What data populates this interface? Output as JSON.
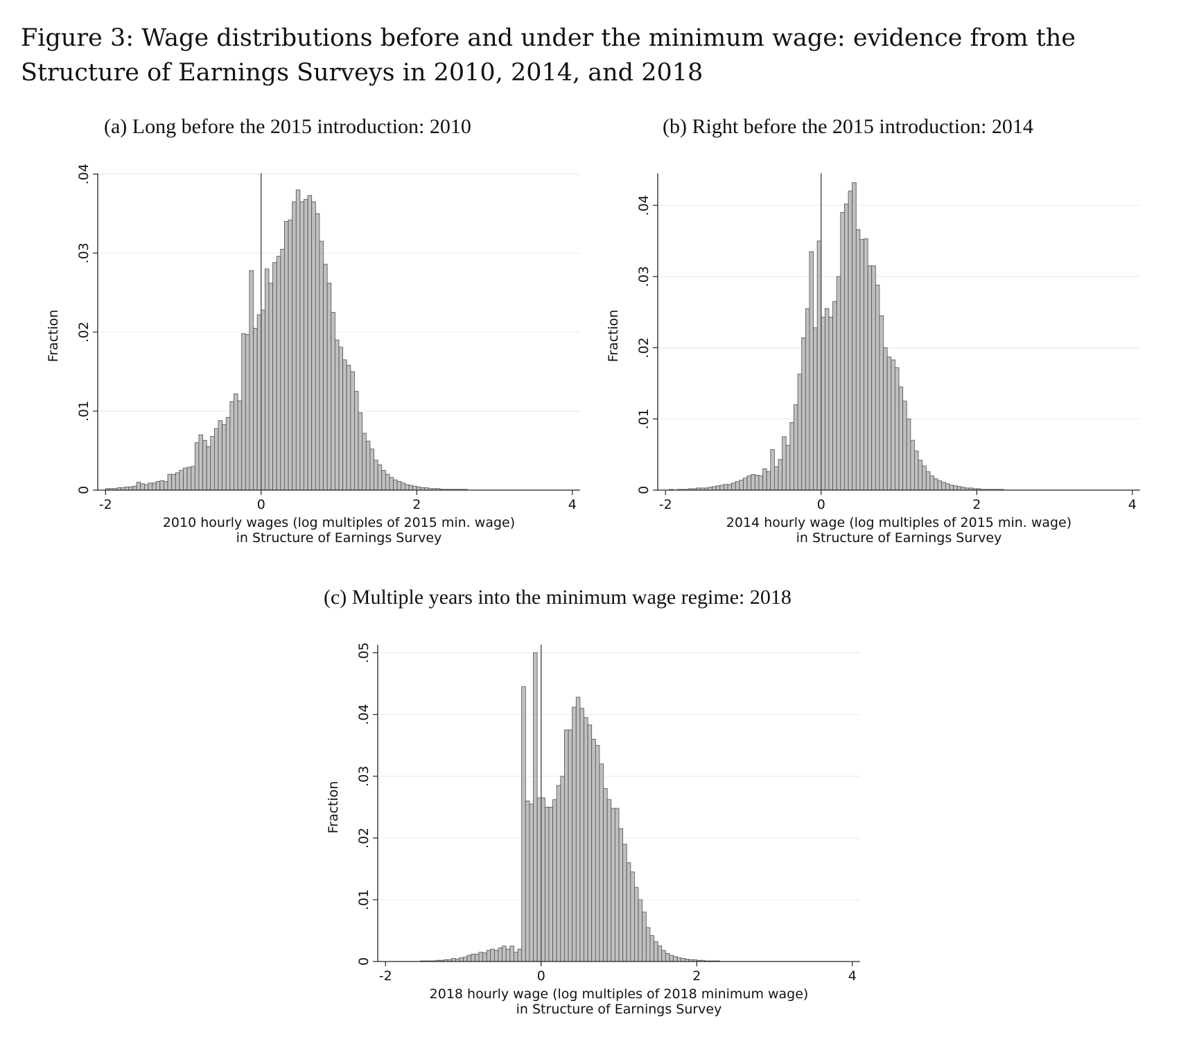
{
  "figure_title": "Figure 3: Wage distributions before and under the minimum wage: evidence from the Structure of Earnings Surveys in 2010, 2014, and 2018",
  "chart_data": [
    {
      "id": "a",
      "type": "bar",
      "title": "(a) Long before the 2015 introduction: 2010",
      "ylabel": "Fraction",
      "xlabel_lines": [
        "2010 hourly wages (log multiples of 2015 min. wage)",
        "in Structure of Earnings Survey"
      ],
      "xlim": [
        -2.1,
        4.1
      ],
      "ylim": [
        0,
        0.0401
      ],
      "xticks": [
        -2,
        0,
        2,
        4
      ],
      "xtick_labels": [
        "-2",
        "0",
        "2",
        "4"
      ],
      "yticks": [
        0,
        0.01,
        0.02,
        0.03,
        0.04
      ],
      "ytick_labels": [
        "0",
        ".01",
        ".02",
        ".03",
        ".04"
      ],
      "grid": true,
      "reference_line_x": 0,
      "bin_start": -2.0,
      "bin_width": 0.05,
      "values": [
        0.0002,
        0.0002,
        0.0002,
        0.0003,
        0.0003,
        0.0004,
        0.0004,
        0.0005,
        0.001,
        0.0008,
        0.0007,
        0.0009,
        0.0009,
        0.0011,
        0.0012,
        0.0011,
        0.002,
        0.002,
        0.0022,
        0.0025,
        0.0028,
        0.0029,
        0.003,
        0.006,
        0.007,
        0.0063,
        0.0055,
        0.0068,
        0.0078,
        0.0088,
        0.0083,
        0.0092,
        0.0112,
        0.0122,
        0.0113,
        0.0198,
        0.0197,
        0.0278,
        0.0205,
        0.0222,
        0.0228,
        0.028,
        0.0262,
        0.0288,
        0.0296,
        0.0305,
        0.034,
        0.0342,
        0.0365,
        0.038,
        0.0365,
        0.0368,
        0.0373,
        0.0365,
        0.035,
        0.0315,
        0.0286,
        0.0262,
        0.0225,
        0.019,
        0.0181,
        0.0165,
        0.0158,
        0.015,
        0.0125,
        0.0098,
        0.0072,
        0.0062,
        0.0052,
        0.0038,
        0.0032,
        0.0025,
        0.002,
        0.0016,
        0.0013,
        0.0011,
        0.0009,
        0.0007,
        0.0006,
        0.0005,
        0.0004,
        0.0003,
        0.0003,
        0.0002,
        0.0002,
        0.0002,
        0.0001,
        0.0001,
        0.0001,
        0.0001,
        0.0001,
        0.0001,
        0.0001,
        0.0,
        0.0,
        0.0,
        0.0,
        0.0,
        0.0,
        0.0,
        0.0,
        0.0,
        0.0,
        0.0,
        0.0,
        0.0,
        0.0,
        0.0,
        0.0,
        0.0,
        0.0,
        0.0,
        0.0,
        0.0,
        0.0,
        0.0,
        0.0,
        0.0,
        0.0,
        0.0
      ]
    },
    {
      "id": "b",
      "type": "bar",
      "title": "(b) Right before the 2015 introduction: 2014",
      "ylabel": "Fraction",
      "xlabel_lines": [
        "2014 hourly wage (log multiples of 2015 min. wage)",
        "in Structure of Earnings Survey"
      ],
      "xlim": [
        -2.1,
        4.1
      ],
      "ylim": [
        0,
        0.0445
      ],
      "xticks": [
        -2,
        0,
        2,
        4
      ],
      "xtick_labels": [
        "-2",
        "0",
        "2",
        "4"
      ],
      "yticks": [
        0,
        0.01,
        0.02,
        0.03,
        0.04
      ],
      "ytick_labels": [
        "0",
        ".01",
        ".02",
        ".03",
        ".04"
      ],
      "grid": true,
      "reference_line_x": 0,
      "bin_start": -2.0,
      "bin_width": 0.05,
      "values": [
        0.0,
        0.0001,
        0.0,
        0.0001,
        0.0001,
        0.0001,
        0.0002,
        0.0002,
        0.0003,
        0.0003,
        0.0003,
        0.0004,
        0.0005,
        0.0006,
        0.0007,
        0.0008,
        0.0008,
        0.001,
        0.0012,
        0.0014,
        0.0017,
        0.002,
        0.0022,
        0.0021,
        0.002,
        0.003,
        0.0026,
        0.0057,
        0.0033,
        0.0043,
        0.0075,
        0.0063,
        0.0095,
        0.012,
        0.0163,
        0.0214,
        0.0255,
        0.0335,
        0.0228,
        0.035,
        0.0243,
        0.0255,
        0.0243,
        0.0265,
        0.03,
        0.039,
        0.0402,
        0.042,
        0.0432,
        0.0366,
        0.0352,
        0.0353,
        0.0315,
        0.0315,
        0.0288,
        0.0245,
        0.02,
        0.0187,
        0.0183,
        0.0172,
        0.0145,
        0.0125,
        0.01,
        0.007,
        0.0055,
        0.0042,
        0.0034,
        0.0026,
        0.002,
        0.0016,
        0.0013,
        0.0011,
        0.0009,
        0.0007,
        0.0006,
        0.0005,
        0.0004,
        0.0003,
        0.0003,
        0.0002,
        0.0002,
        0.0001,
        0.0001,
        0.0001,
        0.0001,
        0.0001,
        0.0001,
        0.0,
        0.0,
        0.0,
        0.0,
        0.0,
        0.0,
        0.0,
        0.0,
        0.0,
        0.0,
        0.0,
        0.0,
        0.0,
        0.0,
        0.0,
        0.0,
        0.0,
        0.0,
        0.0,
        0.0,
        0.0,
        0.0,
        0.0,
        0.0,
        0.0,
        0.0,
        0.0,
        0.0,
        0.0,
        0.0,
        0.0,
        0.0,
        0.0
      ]
    },
    {
      "id": "c",
      "type": "bar",
      "title": "(c) Multiple years into the minimum wage regime: 2018",
      "ylabel": "Fraction",
      "xlabel_lines": [
        "2018 hourly wage (log multiples of 2018 minimum wage)",
        "in Structure of Earnings Survey"
      ],
      "xlim": [
        -2.1,
        4.1
      ],
      "ylim": [
        0,
        0.0513
      ],
      "xticks": [
        -2,
        0,
        2,
        4
      ],
      "xtick_labels": [
        "-2",
        "0",
        "2",
        "4"
      ],
      "yticks": [
        0,
        0.01,
        0.02,
        0.03,
        0.04,
        0.05
      ],
      "ytick_labels": [
        "0",
        ".01",
        ".02",
        ".03",
        ".04",
        ".05"
      ],
      "grid": true,
      "reference_line_x": 0,
      "bin_start": -2.0,
      "bin_width": 0.05,
      "values": [
        0.0,
        0.0,
        0.0,
        0.0,
        0.0,
        0.0,
        0.0,
        0.0,
        0.0,
        0.0001,
        0.0001,
        0.0001,
        0.0001,
        0.0002,
        0.0002,
        0.0003,
        0.0003,
        0.0005,
        0.0004,
        0.0006,
        0.0007,
        0.001,
        0.0012,
        0.0012,
        0.0015,
        0.0014,
        0.0018,
        0.002,
        0.0018,
        0.0022,
        0.0025,
        0.002,
        0.0025,
        0.0015,
        0.002,
        0.0445,
        0.026,
        0.0255,
        0.05,
        0.0265,
        0.0265,
        0.025,
        0.025,
        0.0262,
        0.0285,
        0.03,
        0.0375,
        0.0375,
        0.0412,
        0.0428,
        0.041,
        0.0395,
        0.0383,
        0.036,
        0.035,
        0.032,
        0.028,
        0.0262,
        0.0248,
        0.0248,
        0.0215,
        0.019,
        0.016,
        0.0145,
        0.012,
        0.01,
        0.008,
        0.0055,
        0.0042,
        0.0032,
        0.0025,
        0.0018,
        0.0013,
        0.001,
        0.0008,
        0.0006,
        0.0005,
        0.0004,
        0.0003,
        0.0003,
        0.0002,
        0.0002,
        0.0001,
        0.0001,
        0.0001,
        0.0001,
        0.0,
        0.0,
        0.0,
        0.0,
        0.0,
        0.0,
        0.0,
        0.0,
        0.0,
        0.0,
        0.0,
        0.0,
        0.0,
        0.0,
        0.0,
        0.0,
        0.0,
        0.0,
        0.0,
        0.0,
        0.0,
        0.0,
        0.0,
        0.0,
        0.0,
        0.0,
        0.0,
        0.0,
        0.0,
        0.0,
        0.0,
        0.0,
        0.0,
        0.0
      ]
    }
  ],
  "colors": {
    "bar_fill": "#c0c0c0",
    "bar_stroke": "#4d4d4d",
    "grid": "#ebebeb",
    "axis": "#222222",
    "reference_line": "#555555"
  }
}
